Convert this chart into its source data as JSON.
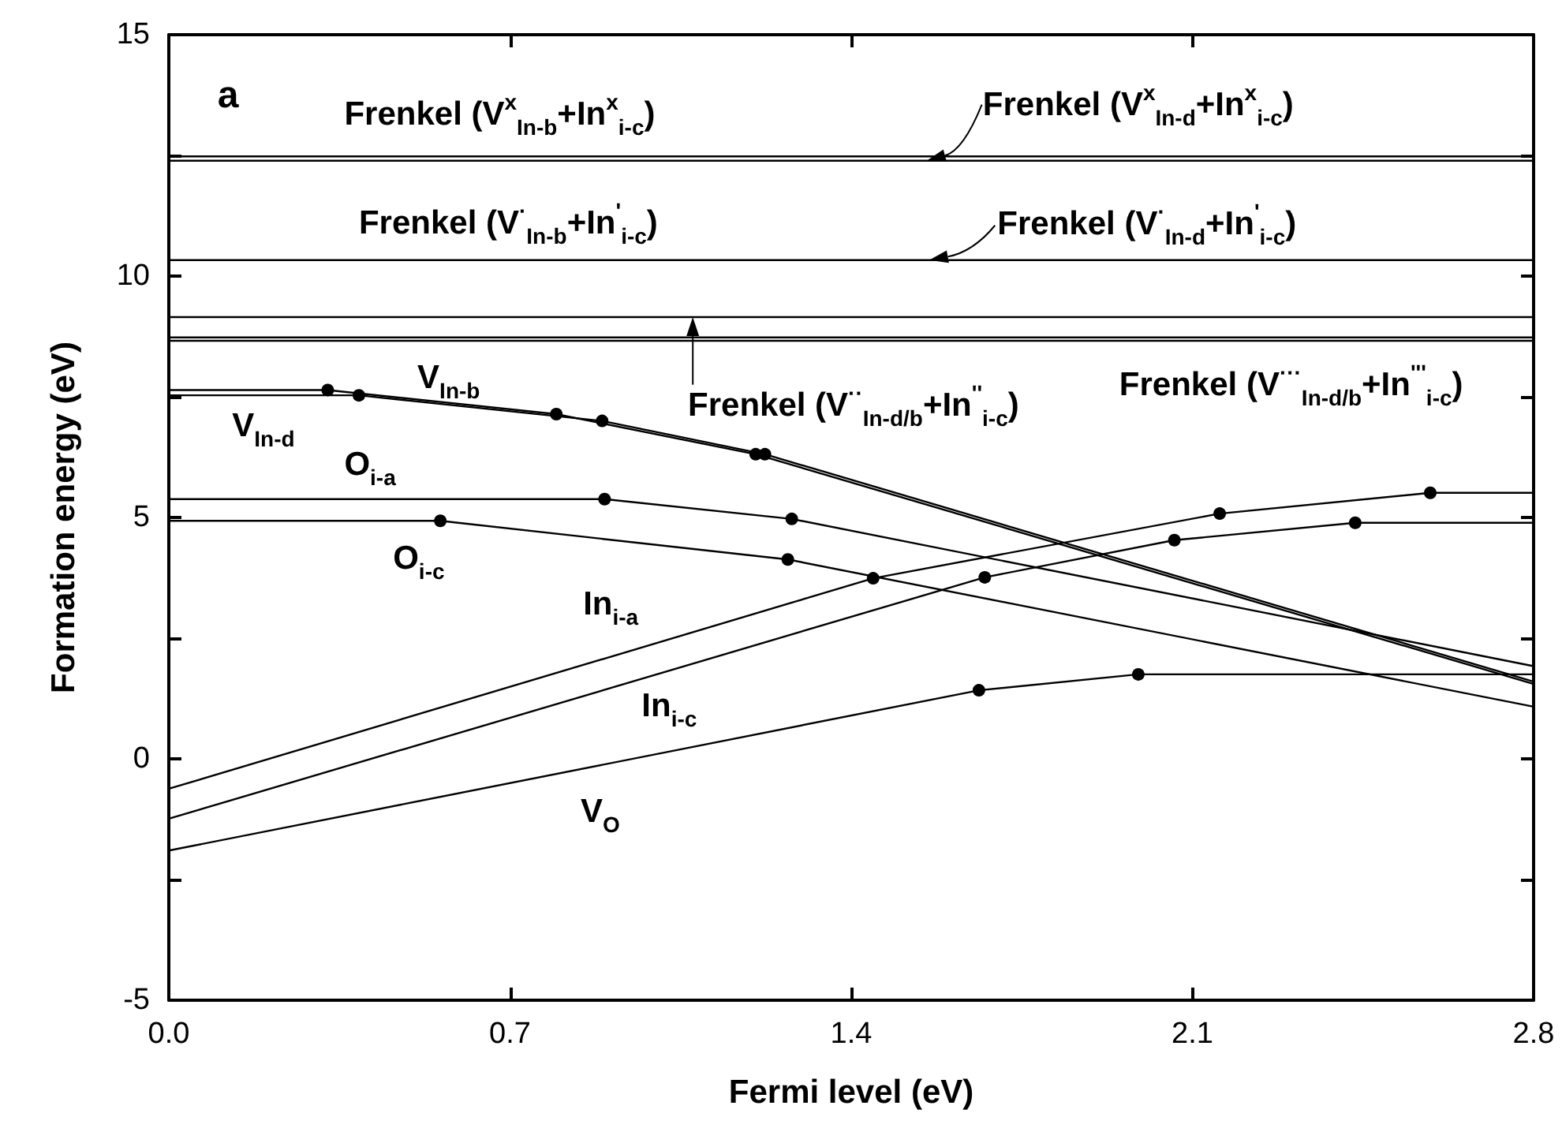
{
  "chart_data": {
    "type": "line",
    "xlabel": "Fermi level (eV)",
    "ylabel": "Formation energy (eV)",
    "xlim": [
      0,
      2.8
    ],
    "xticks": [
      {
        "value": 0,
        "label": "0.0"
      },
      0.7,
      1.4,
      2.1,
      2.8
    ],
    "ylim": [
      -5,
      15
    ],
    "yticks": [
      -5,
      {
        "value": -2.5,
        "label": null
      },
      0,
      {
        "value": 2.5,
        "label": null
      },
      5,
      {
        "value": 7.5,
        "label": null
      },
      10,
      {
        "value": 12.5,
        "label": null
      },
      15
    ],
    "marker": "circle",
    "annotations": [
      "a",
      "Frenkel (V$^{x}$$_{In-b}$+In$^{x}$$_{i-c}$)",
      {
        "text": "Frenkel (V$^{x}$$_{In-d}$+In$^{x}$$_{i-c}$)",
        "x": 1.555,
        "y": 12.39
      },
      "Frenkel (V$^{·}$$_{In-b}$+In$^{'}$$_{i-c}$)",
      {
        "text": "Frenkel (V$^{·}$$_{In-d}$+In$^{'}$$_{i-c}$)",
        "x": 1.56,
        "y": 10.33
      },
      {
        "text": "Frenkel (V$^{··}$$_{In-d/b}$+In$^{''}$$_{i-c}$)",
        "x": 1.075,
        "y": 9.15
      },
      "Frenkel (V$^{···}$$_{In-d/b}$+In$^{'''}$$_{i-c}$)"
    ],
    "series": [
      {
        "name": "V$_{In-b}$",
        "color": "#000000",
        "x": [
          0,
          0.326,
          0.795,
          1.204,
          2.8
        ],
        "values": [
          7.64,
          7.64,
          7.14,
          6.31,
          1.55
        ]
      },
      {
        "name": "V$_{In-d}$",
        "color": "#000000",
        "x": [
          0,
          0.39,
          0.889,
          1.223,
          2.8
        ],
        "values": [
          7.53,
          7.53,
          7.0,
          6.31,
          1.6
        ]
      },
      {
        "name": "O$_{i-a}$",
        "color": "#000000",
        "x": [
          0,
          0.894,
          1.278,
          2.8
        ],
        "values": [
          5.38,
          5.38,
          4.97,
          1.92
        ]
      },
      {
        "name": "O$_{i-c}$",
        "color": "#000000",
        "x": [
          0,
          0.557,
          1.27,
          2.8
        ],
        "values": [
          4.93,
          4.93,
          4.13,
          1.08
        ]
      },
      {
        "name": "In$_{i-a}$",
        "color": "#000000",
        "x": [
          0,
          1.445,
          2.156,
          2.588,
          2.8
        ],
        "values": [
          -0.62,
          3.74,
          5.08,
          5.51,
          5.51
        ]
      },
      {
        "name": "In$_{i-c}$",
        "color": "#000000",
        "x": [
          0,
          1.674,
          2.063,
          2.434,
          2.8
        ],
        "values": [
          -1.24,
          3.76,
          4.53,
          4.89,
          4.89
        ]
      },
      {
        "name": "V$_{O}$",
        "color": "#000000",
        "x": [
          0,
          1.662,
          1.989,
          2.8
        ],
        "values": [
          -1.9,
          1.42,
          1.75,
          1.75
        ]
      },
      {
        "color": "#000000",
        "marker": "none",
        "x": [
          0,
          2.8
        ],
        "values": [
          12.48,
          12.48
        ]
      },
      {
        "color": "#000000",
        "marker": "none",
        "x": [
          0,
          2.8
        ],
        "values": [
          12.39,
          12.39
        ]
      },
      {
        "color": "#000000",
        "marker": "none",
        "x": [
          0,
          2.8
        ],
        "values": [
          10.33,
          10.33
        ]
      },
      {
        "color": "#000000",
        "marker": "none",
        "x": [
          0,
          2.8
        ],
        "values": [
          9.15,
          9.15
        ]
      },
      {
        "color": "#000000",
        "marker": "none",
        "x": [
          0,
          2.8
        ],
        "values": [
          8.73,
          8.73
        ]
      },
      {
        "color": "#000000",
        "marker": "none",
        "x": [
          0,
          2.8
        ],
        "values": [
          8.66,
          8.66
        ]
      }
    ]
  }
}
